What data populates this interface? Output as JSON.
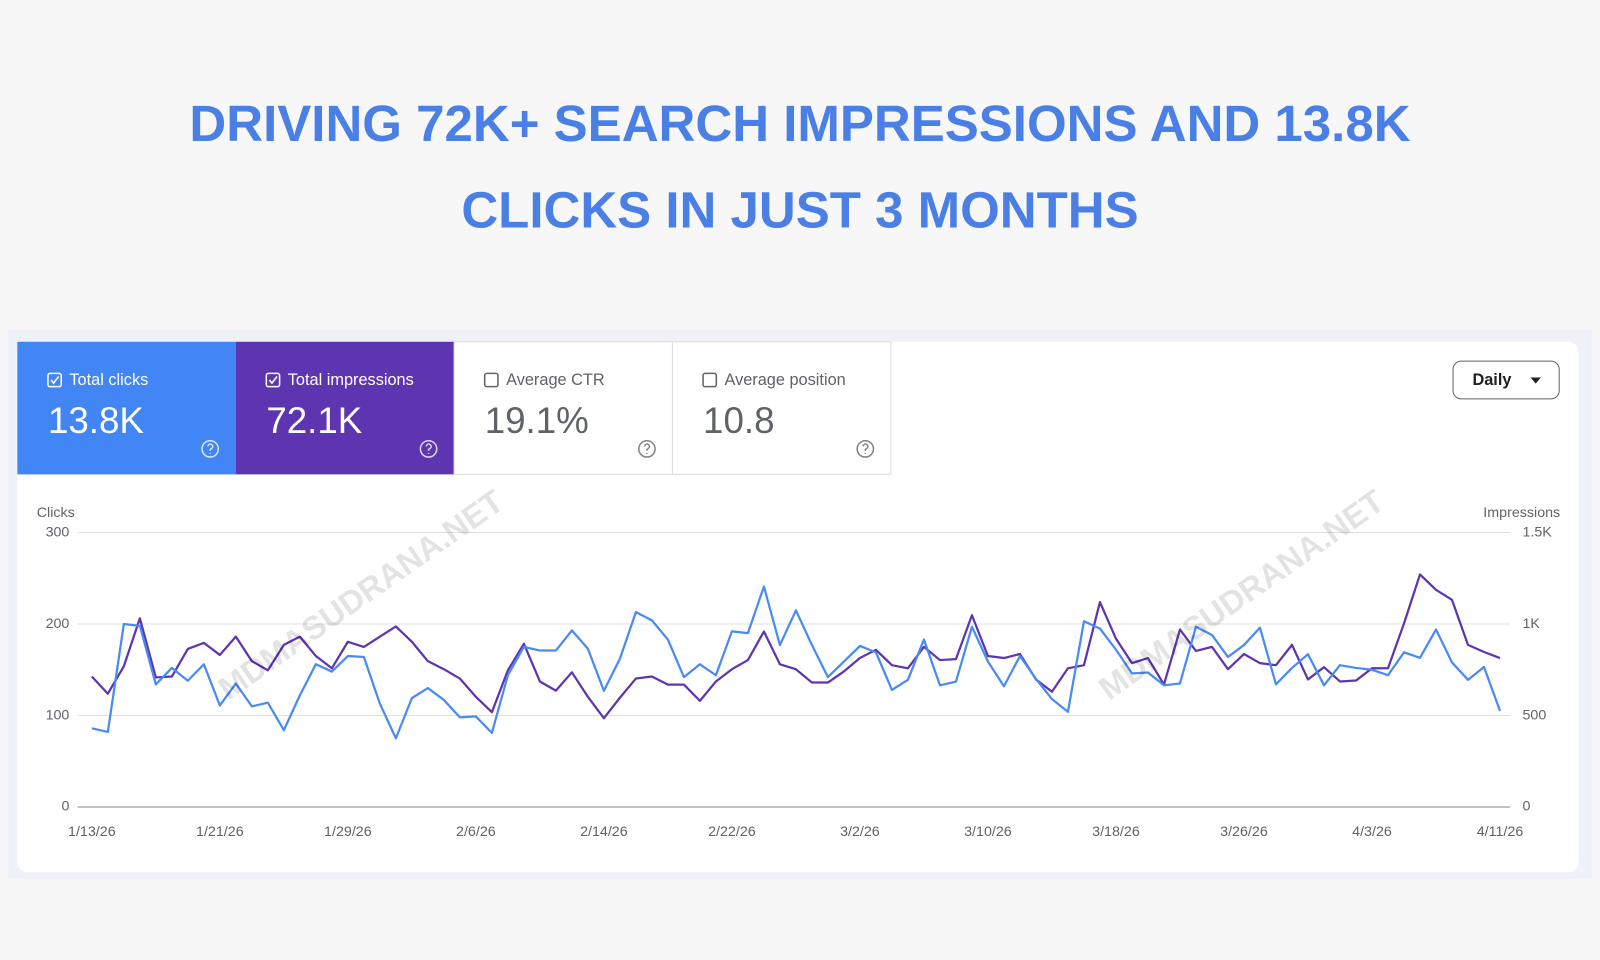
{
  "header": {
    "title_lines": [
      "DRIVING 72K+ SEARCH IMPRESSIONS AND 13.8K",
      "CLICKS IN JUST 3 MONTHS"
    ]
  },
  "metrics": [
    {
      "label": "Total clicks",
      "value": "13.8K",
      "checked": true
    },
    {
      "label": "Total impressions",
      "value": "72.1K",
      "checked": true
    },
    {
      "label": "Average CTR",
      "value": "19.1%",
      "checked": false
    },
    {
      "label": "Average position",
      "value": "10.8",
      "checked": false
    }
  ],
  "dropdown": "Daily",
  "watermark": "MDMASUDRANA.NET",
  "chart_data": {
    "type": "line",
    "y_label": "Clicks",
    "y2_label": "Impressions",
    "categories": [
      "1/13/26",
      null,
      null,
      null,
      null,
      null,
      null,
      null,
      "1/21/26",
      null,
      null,
      null,
      null,
      null,
      null,
      null,
      "1/29/26",
      null,
      null,
      null,
      null,
      null,
      null,
      null,
      "2/6/26",
      null,
      null,
      null,
      null,
      null,
      null,
      null,
      "2/14/26",
      null,
      null,
      null,
      null,
      null,
      null,
      null,
      "2/22/26",
      null,
      null,
      null,
      null,
      null,
      null,
      null,
      "3/2/26",
      null,
      null,
      null,
      null,
      null,
      null,
      null,
      "3/10/26",
      null,
      null,
      null,
      null,
      null,
      null,
      null,
      "3/18/26",
      null,
      null,
      null,
      null,
      null,
      null,
      null,
      "3/26/26",
      null,
      null,
      null,
      null,
      null,
      null,
      null,
      "4/3/26",
      null,
      null,
      null,
      null,
      null,
      null,
      null,
      "4/11/26"
    ],
    "series": [
      {
        "name": "Clicks",
        "color": "#4a8af4",
        "values": [
          86,
          82,
          200,
          198,
          134,
          152,
          138,
          156,
          111,
          135,
          110,
          114,
          84,
          122,
          156,
          148,
          165,
          164,
          113,
          75,
          119,
          130,
          117,
          98,
          99,
          81,
          144,
          175,
          171,
          171,
          193,
          173,
          127,
          162,
          213,
          204,
          183,
          142,
          156,
          144,
          192,
          190,
          241,
          177,
          215,
          177,
          142,
          159,
          176,
          169,
          128,
          139,
          183,
          133,
          137,
          197,
          159,
          132,
          165,
          140,
          118,
          104,
          203,
          195,
          172,
          146,
          147,
          133,
          135,
          197,
          188,
          164,
          177,
          196,
          134,
          152,
          167,
          133,
          155,
          152,
          150,
          144,
          169,
          163,
          194,
          158,
          139,
          153,
          105
        ]
      },
      {
        "name": "Impressions",
        "color": "#5e35b1",
        "axis": "y2",
        "values": [
          713,
          619,
          769,
          1031,
          708,
          713,
          864,
          897,
          831,
          931,
          797,
          747,
          886,
          931,
          825,
          758,
          903,
          875,
          931,
          987,
          903,
          797,
          753,
          702,
          602,
          518,
          747,
          892,
          686,
          636,
          736,
          602,
          485,
          597,
          702,
          713,
          669,
          669,
          580,
          686,
          753,
          803,
          959,
          780,
          753,
          680,
          680,
          741,
          814,
          859,
          775,
          758,
          875,
          803,
          808,
          1048,
          825,
          814,
          836,
          697,
          630,
          758,
          775,
          1120,
          920,
          786,
          814,
          669,
          970,
          853,
          875,
          753,
          836,
          786,
          775,
          886,
          697,
          764,
          686,
          691,
          758,
          758,
          1003,
          1271,
          1187,
          1132,
          886,
          847,
          814
        ]
      }
    ],
    "ylim": [
      0,
      300
    ],
    "yticks": [
      0,
      100,
      200,
      300
    ],
    "y2lim": [
      0,
      1500
    ],
    "y2ticks": [
      0,
      500,
      {
        "value": 1000,
        "label": "1K"
      },
      {
        "value": 1500,
        "label": "1.5K"
      }
    ],
    "grid": true
  }
}
